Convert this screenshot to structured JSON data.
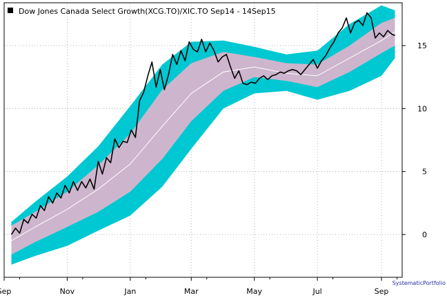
{
  "chart_data": {
    "type": "line",
    "title": "Dow Jones Canada Select Growth(XCG.TO)/XIC.TO Sep14 - 14Sep15",
    "credit": "SystematicPortfolio",
    "x_tick_labels": [
      "Sep",
      "Nov",
      "Jan",
      "Mar",
      "May",
      "Jul",
      "Sep"
    ],
    "x_tick_dates": [
      "2014-09-01",
      "2014-11-01",
      "2015-01-01",
      "2015-03-01",
      "2015-05-01",
      "2015-07-01",
      "2015-09-01"
    ],
    "x_range": [
      "2014-09-01",
      "2015-09-21"
    ],
    "y_ticks": [
      0,
      5,
      10,
      15
    ],
    "y_range": [
      -3.4,
      18.4
    ],
    "y_axis_side": "right",
    "grid": true,
    "legend": "top-left",
    "colors": {
      "price": "#000000",
      "outer_band": "#00c8d2",
      "inner_band": "#cdb5cd",
      "mid_line": "#ffffff",
      "grid": "#b0b0b0"
    },
    "series": [
      {
        "name": "Dow Jones Canada Select Growth(XCG.TO)/XIC.TO",
        "role": "price",
        "points": [
          [
            "2014-09-08",
            0.0
          ],
          [
            "2014-09-12",
            0.5
          ],
          [
            "2014-09-16",
            0.1
          ],
          [
            "2014-09-20",
            1.2
          ],
          [
            "2014-09-24",
            0.9
          ],
          [
            "2014-09-28",
            1.6
          ],
          [
            "2014-10-02",
            1.3
          ],
          [
            "2014-10-06",
            2.3
          ],
          [
            "2014-10-10",
            1.9
          ],
          [
            "2014-10-14",
            3.0
          ],
          [
            "2014-10-18",
            2.5
          ],
          [
            "2014-10-22",
            3.3
          ],
          [
            "2014-10-26",
            2.9
          ],
          [
            "2014-10-30",
            3.9
          ],
          [
            "2014-11-03",
            3.3
          ],
          [
            "2014-11-07",
            4.2
          ],
          [
            "2014-11-11",
            3.5
          ],
          [
            "2014-11-15",
            4.2
          ],
          [
            "2014-11-19",
            3.7
          ],
          [
            "2014-11-23",
            4.4
          ],
          [
            "2014-11-27",
            3.6
          ],
          [
            "2014-12-01",
            5.8
          ],
          [
            "2014-12-05",
            4.8
          ],
          [
            "2014-12-09",
            6.1
          ],
          [
            "2014-12-13",
            5.7
          ],
          [
            "2014-12-17",
            7.6
          ],
          [
            "2014-12-21",
            6.9
          ],
          [
            "2014-12-25",
            7.4
          ],
          [
            "2014-12-29",
            7.3
          ],
          [
            "2015-01-02",
            8.3
          ],
          [
            "2015-01-06",
            7.7
          ],
          [
            "2015-01-10",
            10.6
          ],
          [
            "2015-01-14",
            11.3
          ],
          [
            "2015-01-18",
            12.6
          ],
          [
            "2015-01-22",
            13.7
          ],
          [
            "2015-01-26",
            11.7
          ],
          [
            "2015-01-30",
            13.1
          ],
          [
            "2015-02-03",
            11.5
          ],
          [
            "2015-02-07",
            12.7
          ],
          [
            "2015-02-11",
            14.3
          ],
          [
            "2015-02-15",
            13.5
          ],
          [
            "2015-02-19",
            14.6
          ],
          [
            "2015-02-23",
            13.8
          ],
          [
            "2015-02-27",
            15.3
          ],
          [
            "2015-03-03",
            14.7
          ],
          [
            "2015-03-07",
            14.5
          ],
          [
            "2015-03-11",
            15.5
          ],
          [
            "2015-03-15",
            14.5
          ],
          [
            "2015-03-19",
            15.2
          ],
          [
            "2015-03-23",
            14.6
          ],
          [
            "2015-03-27",
            13.7
          ],
          [
            "2015-03-31",
            14.1
          ],
          [
            "2015-04-04",
            14.3
          ],
          [
            "2015-04-08",
            13.3
          ],
          [
            "2015-04-12",
            12.4
          ],
          [
            "2015-04-16",
            13.0
          ],
          [
            "2015-04-20",
            12.0
          ],
          [
            "2015-04-24",
            11.9
          ],
          [
            "2015-04-28",
            12.1
          ],
          [
            "2015-05-02",
            12.0
          ],
          [
            "2015-05-06",
            12.4
          ],
          [
            "2015-05-10",
            12.6
          ],
          [
            "2015-05-14",
            12.3
          ],
          [
            "2015-05-18",
            12.6
          ],
          [
            "2015-05-22",
            12.7
          ],
          [
            "2015-05-26",
            12.9
          ],
          [
            "2015-05-30",
            12.8
          ],
          [
            "2015-06-03",
            13.0
          ],
          [
            "2015-06-07",
            13.1
          ],
          [
            "2015-06-11",
            13.0
          ],
          [
            "2015-06-15",
            12.7
          ],
          [
            "2015-06-19",
            13.1
          ],
          [
            "2015-06-23",
            13.5
          ],
          [
            "2015-06-27",
            13.9
          ],
          [
            "2015-07-01",
            13.2
          ],
          [
            "2015-07-05",
            13.8
          ],
          [
            "2015-07-09",
            14.2
          ],
          [
            "2015-07-13",
            14.8
          ],
          [
            "2015-07-17",
            15.3
          ],
          [
            "2015-07-21",
            16.0
          ],
          [
            "2015-07-25",
            16.4
          ],
          [
            "2015-07-29",
            17.2
          ],
          [
            "2015-08-02",
            16.0
          ],
          [
            "2015-08-06",
            16.8
          ],
          [
            "2015-08-10",
            17.0
          ],
          [
            "2015-08-14",
            16.6
          ],
          [
            "2015-08-18",
            17.6
          ],
          [
            "2015-08-22",
            17.2
          ],
          [
            "2015-08-26",
            15.6
          ],
          [
            "2015-08-30",
            16.0
          ],
          [
            "2015-09-03",
            15.7
          ],
          [
            "2015-09-07",
            16.2
          ],
          [
            "2015-09-11",
            15.9
          ],
          [
            "2015-09-14",
            15.8
          ]
        ]
      },
      {
        "name": "",
        "role": "mid_line",
        "points": [
          [
            "2014-09-08",
            -0.5
          ],
          [
            "2014-10-01",
            0.6
          ],
          [
            "2014-11-01",
            2.0
          ],
          [
            "2014-12-01",
            3.6
          ],
          [
            "2015-01-01",
            5.6
          ],
          [
            "2015-02-01",
            8.6
          ],
          [
            "2015-03-01",
            11.2
          ],
          [
            "2015-04-01",
            12.9
          ],
          [
            "2015-05-01",
            13.3
          ],
          [
            "2015-06-01",
            12.8
          ],
          [
            "2015-07-01",
            12.6
          ],
          [
            "2015-08-01",
            14.0
          ],
          [
            "2015-09-01",
            15.4
          ],
          [
            "2015-09-14",
            16.1
          ]
        ]
      },
      {
        "name": "",
        "role": "inner_band",
        "upper": [
          [
            "2014-09-08",
            0.7
          ],
          [
            "2014-10-01",
            1.8
          ],
          [
            "2014-11-01",
            3.4
          ],
          [
            "2014-12-01",
            5.5
          ],
          [
            "2015-01-01",
            8.0
          ],
          [
            "2015-02-01",
            11.5
          ],
          [
            "2015-03-01",
            13.6
          ],
          [
            "2015-04-01",
            14.5
          ],
          [
            "2015-05-01",
            14.1
          ],
          [
            "2015-06-01",
            13.6
          ],
          [
            "2015-07-01",
            13.5
          ],
          [
            "2015-08-01",
            15.0
          ],
          [
            "2015-09-01",
            16.8
          ],
          [
            "2015-09-14",
            17.2
          ]
        ],
        "lower": [
          [
            "2014-09-08",
            -1.6
          ],
          [
            "2014-10-01",
            -0.6
          ],
          [
            "2014-11-01",
            0.6
          ],
          [
            "2014-12-01",
            1.8
          ],
          [
            "2015-01-01",
            3.4
          ],
          [
            "2015-02-01",
            6.0
          ],
          [
            "2015-03-01",
            9.0
          ],
          [
            "2015-04-01",
            11.4
          ],
          [
            "2015-05-01",
            12.5
          ],
          [
            "2015-06-01",
            12.2
          ],
          [
            "2015-07-01",
            11.7
          ],
          [
            "2015-08-01",
            12.9
          ],
          [
            "2015-09-01",
            14.4
          ],
          [
            "2015-09-14",
            15.0
          ]
        ]
      },
      {
        "name": "",
        "role": "outer_band",
        "upper": [
          [
            "2014-09-08",
            1.0
          ],
          [
            "2014-10-01",
            2.6
          ],
          [
            "2014-11-01",
            4.6
          ],
          [
            "2014-12-01",
            7.0
          ],
          [
            "2015-01-01",
            10.2
          ],
          [
            "2015-02-01",
            13.5
          ],
          [
            "2015-03-01",
            15.3
          ],
          [
            "2015-04-01",
            15.4
          ],
          [
            "2015-05-01",
            14.9
          ],
          [
            "2015-06-01",
            14.3
          ],
          [
            "2015-07-01",
            14.6
          ],
          [
            "2015-08-01",
            16.7
          ],
          [
            "2015-09-01",
            18.2
          ],
          [
            "2015-09-14",
            17.8
          ]
        ],
        "lower": [
          [
            "2014-09-08",
            -2.4
          ],
          [
            "2014-10-01",
            -1.7
          ],
          [
            "2014-11-01",
            -0.9
          ],
          [
            "2014-12-01",
            0.3
          ],
          [
            "2015-01-01",
            1.5
          ],
          [
            "2015-02-01",
            3.8
          ],
          [
            "2015-03-01",
            6.8
          ],
          [
            "2015-04-01",
            10.0
          ],
          [
            "2015-05-01",
            11.2
          ],
          [
            "2015-06-01",
            11.4
          ],
          [
            "2015-07-01",
            10.7
          ],
          [
            "2015-08-01",
            11.4
          ],
          [
            "2015-09-01",
            12.6
          ],
          [
            "2015-09-14",
            14.0
          ]
        ]
      }
    ]
  }
}
